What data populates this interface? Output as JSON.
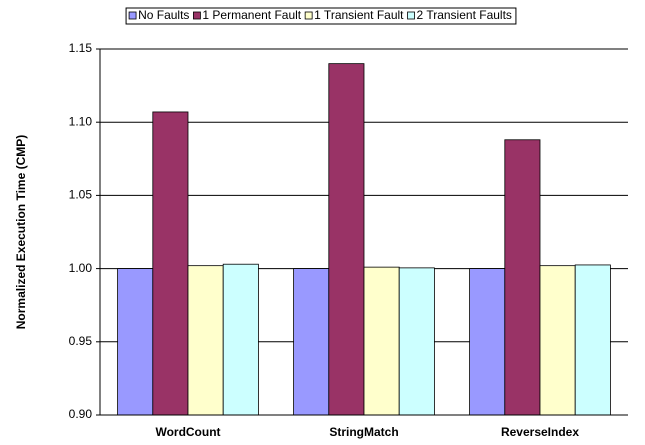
{
  "chart_data": {
    "type": "bar",
    "y_label": "Normalized Execution Time (CMP)",
    "categories": [
      "WordCount",
      "StringMatch",
      "ReverseIndex"
    ],
    "series": [
      {
        "name": "No Faults",
        "color": "#9999ff",
        "values": [
          1.0,
          1.0,
          1.0
        ]
      },
      {
        "name": "1 Permanent Fault",
        "color": "#993366",
        "values": [
          1.107,
          1.14,
          1.088
        ]
      },
      {
        "name": "1 Transient Fault",
        "color": "#ffffcc",
        "values": [
          1.002,
          1.001,
          1.002
        ]
      },
      {
        "name": "2 Transient Faults",
        "color": "#ccffff",
        "values": [
          1.003,
          1.0005,
          1.0025
        ]
      }
    ],
    "ylim": [
      0.9,
      1.15
    ],
    "yticks": [
      {
        "value": 0.9,
        "label": "0.90"
      },
      0.95,
      {
        "value": 1.0,
        "label": "1.00"
      },
      1.05,
      {
        "value": 1.1,
        "label": "1.10"
      },
      1.15
    ],
    "grid": true,
    "legend": "top"
  }
}
